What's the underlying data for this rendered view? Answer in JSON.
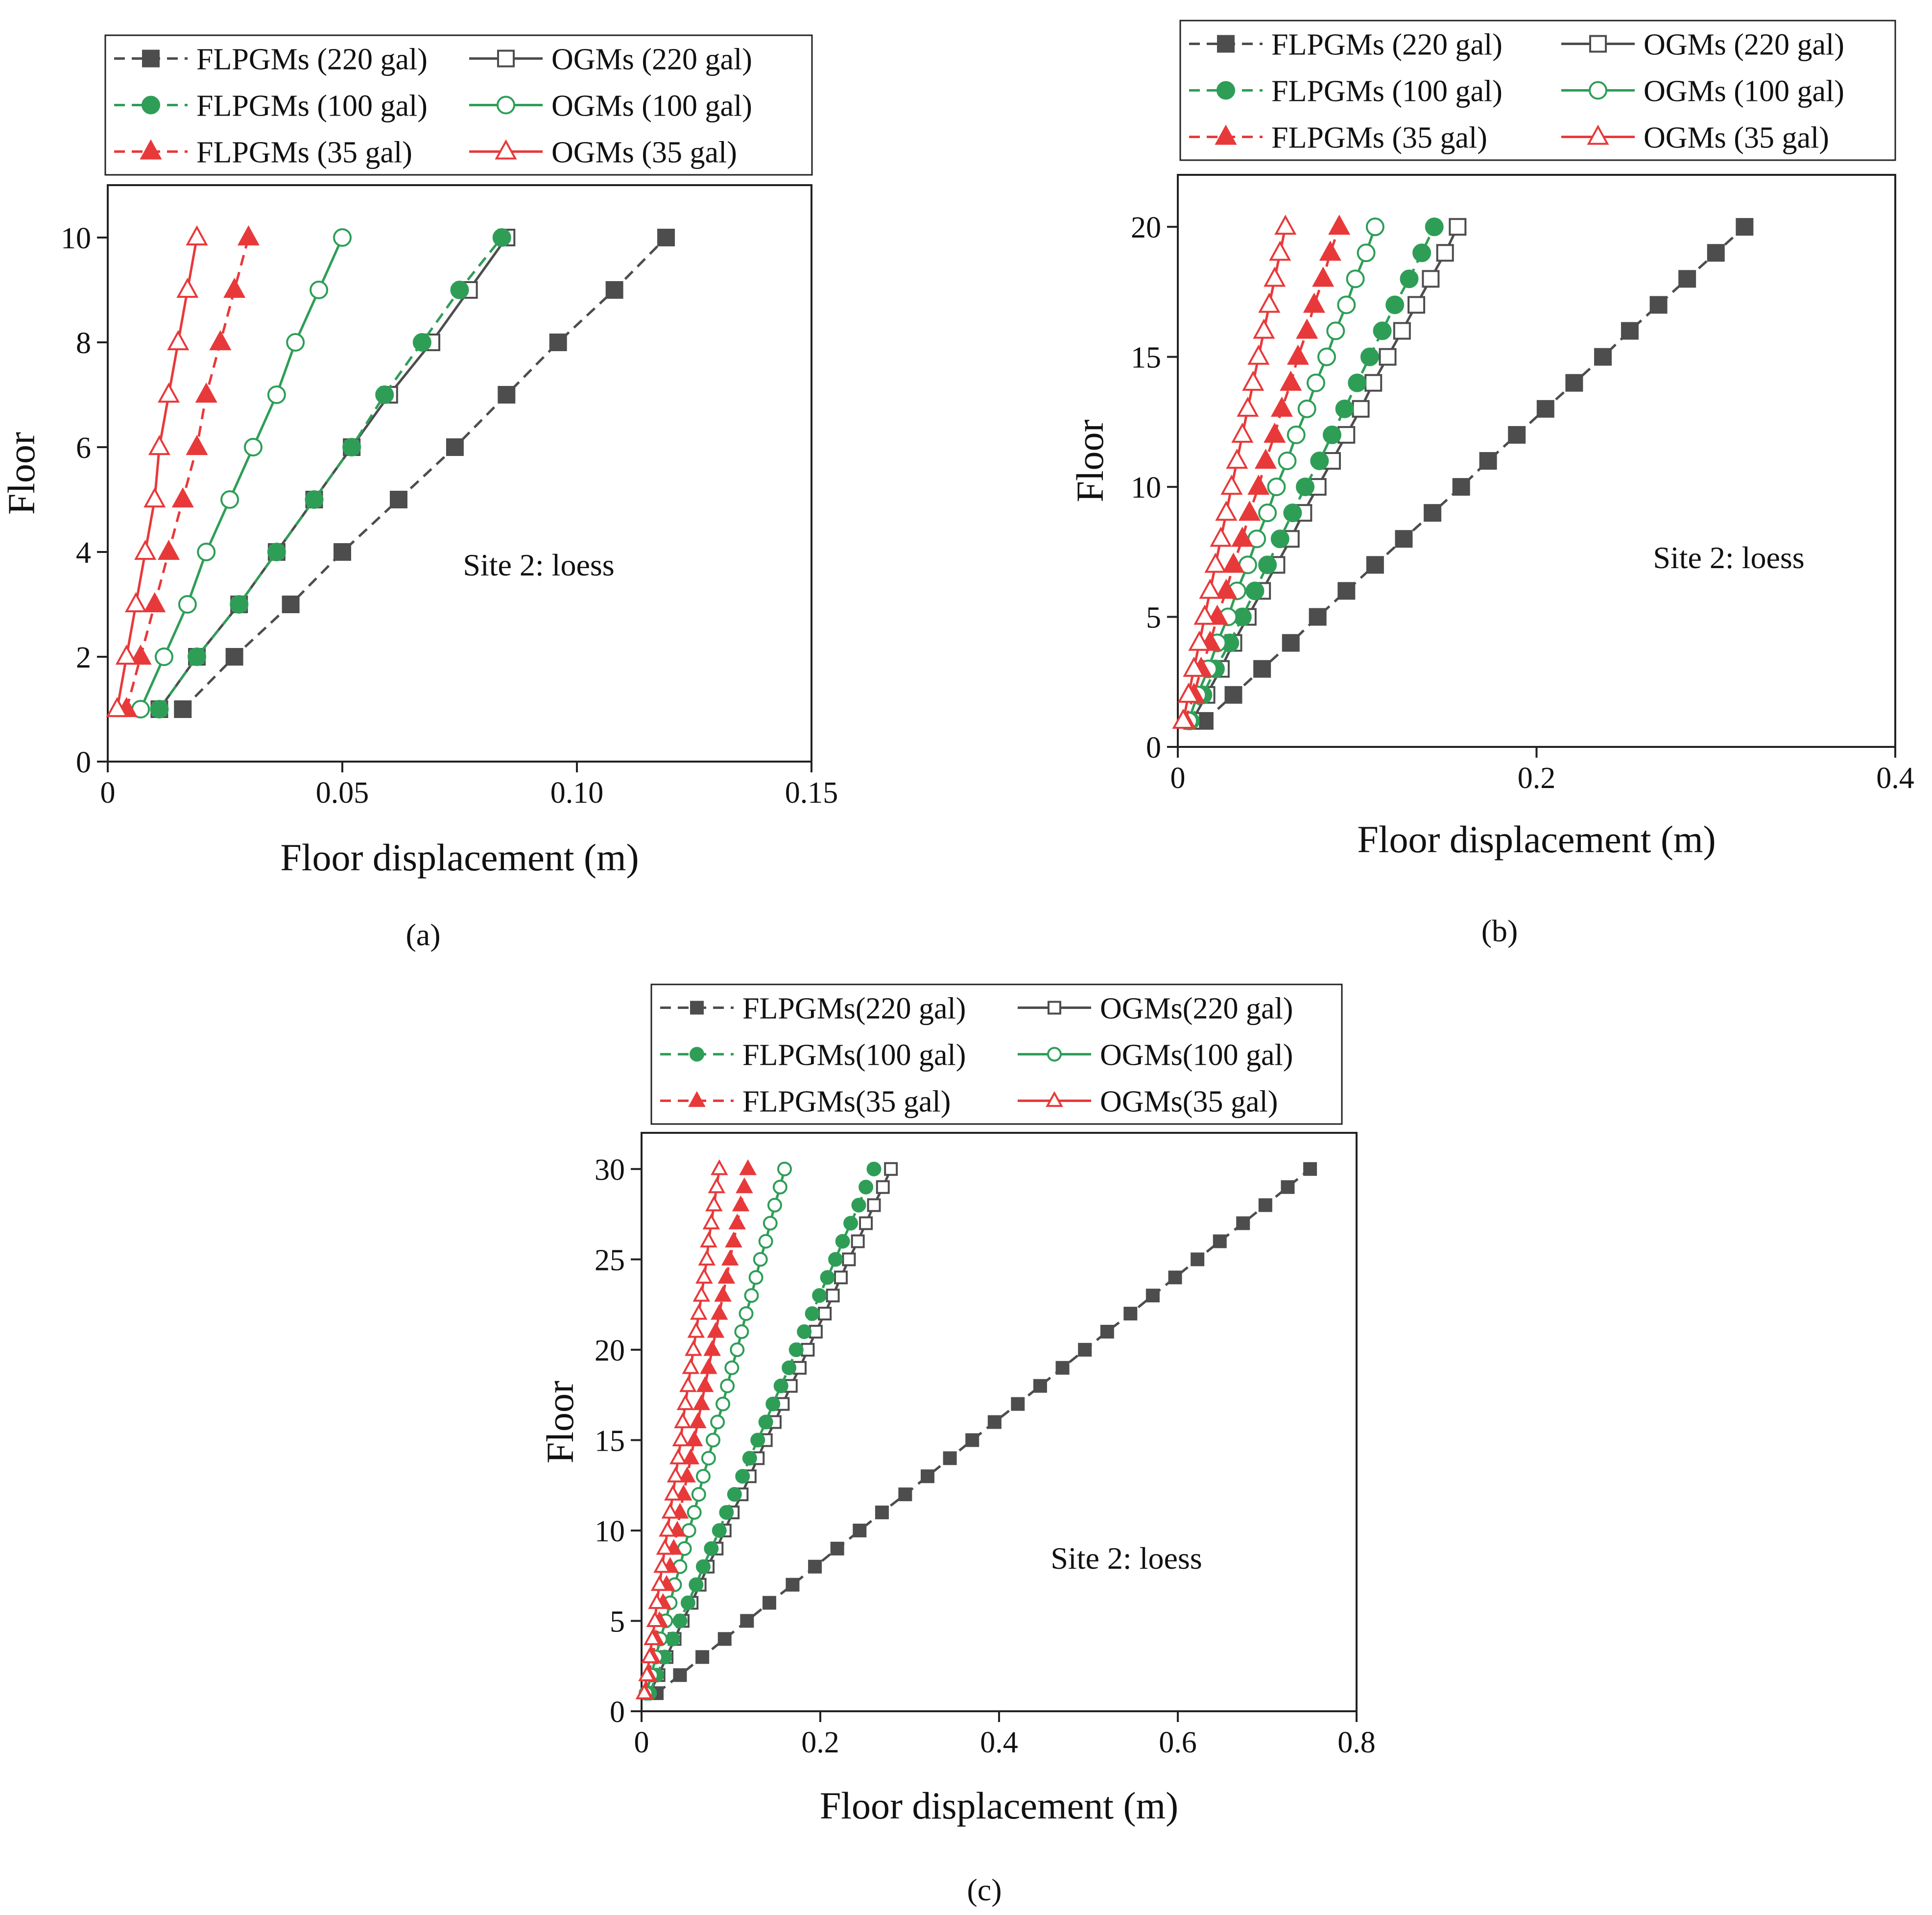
{
  "chart_data": [
    {
      "panel": "(a)",
      "type": "line",
      "xlabel": "Floor displacement (m)",
      "ylabel": "Floor",
      "xlim": [
        0,
        0.15
      ],
      "ylim": [
        0,
        11
      ],
      "xticks": [
        0,
        0.05,
        0.1,
        0.15
      ],
      "xtick_labels": [
        "0",
        "0.05",
        "0.10",
        "0.15"
      ],
      "yticks": [
        0,
        2,
        4,
        6,
        8,
        10
      ],
      "ytick_labels": [
        "0",
        "2",
        "4",
        "6",
        "8",
        "10"
      ],
      "annotation": "Site 2: loess",
      "legend_location": "top",
      "legend": [
        "FLPGMs (220 gal)",
        "OGMs (220 gal)",
        "FLPGMs (100 gal)",
        "OGMs (100 gal)",
        "FLPGMs (35 gal)",
        "OGMs (35 gal)"
      ],
      "floors": [
        1,
        2,
        3,
        4,
        5,
        6,
        7,
        8,
        9,
        10
      ],
      "series": [
        {
          "name": "FLPGMs (220 gal)",
          "color": "#4d4d4d",
          "line": "dashed",
          "marker": "square",
          "filled": true,
          "values": [
            0.016,
            0.027,
            0.039,
            0.05,
            0.062,
            0.074,
            0.085,
            0.096,
            0.108,
            0.119
          ]
        },
        {
          "name": "OGMs (220 gal)",
          "color": "#4d4d4d",
          "line": "solid",
          "marker": "square",
          "filled": false,
          "values": [
            0.011,
            0.019,
            0.028,
            0.036,
            0.044,
            0.052,
            0.06,
            0.069,
            0.077,
            0.085
          ]
        },
        {
          "name": "FLPGMs (100 gal)",
          "color": "#2e9e57",
          "line": "dashed",
          "marker": "circle",
          "filled": true,
          "values": [
            0.011,
            0.019,
            0.028,
            0.036,
            0.044,
            0.052,
            0.059,
            0.067,
            0.075,
            0.084
          ]
        },
        {
          "name": "OGMs (100 gal)",
          "color": "#2e9e57",
          "line": "solid",
          "marker": "circle",
          "filled": false,
          "values": [
            0.007,
            0.012,
            0.017,
            0.021,
            0.026,
            0.031,
            0.036,
            0.04,
            0.045,
            0.05
          ]
        },
        {
          "name": "FLPGMs (35 gal)",
          "color": "#e8393a",
          "line": "dashed",
          "marker": "triangle",
          "filled": true,
          "values": [
            0.004,
            0.007,
            0.01,
            0.013,
            0.016,
            0.019,
            0.021,
            0.024,
            0.027,
            0.03
          ]
        },
        {
          "name": "OGMs (35 gal)",
          "color": "#e8393a",
          "line": "solid",
          "marker": "triangle",
          "filled": false,
          "values": [
            0.002,
            0.004,
            0.006,
            0.008,
            0.01,
            0.011,
            0.013,
            0.015,
            0.017,
            0.019
          ]
        }
      ]
    },
    {
      "panel": "(b)",
      "type": "line",
      "xlabel": "Floor displacement (m)",
      "ylabel": "Floor",
      "xlim": [
        0,
        0.4
      ],
      "ylim": [
        0,
        22
      ],
      "xticks": [
        0,
        0.2,
        0.4
      ],
      "xtick_labels": [
        "0",
        "0.2",
        "0.4"
      ],
      "yticks": [
        0,
        5,
        10,
        15,
        20
      ],
      "ytick_labels": [
        "0",
        "5",
        "10",
        "15",
        "20"
      ],
      "annotation": "Site 2: loess",
      "legend_location": "top",
      "legend": [
        "FLPGMs (220 gal)",
        "OGMs (220 gal)",
        "FLPGMs (100 gal)",
        "OGMs (100 gal)",
        "FLPGMs (35 gal)",
        "OGMs (35 gal)"
      ],
      "floors": [
        1,
        2,
        3,
        4,
        5,
        6,
        7,
        8,
        9,
        10,
        11,
        12,
        13,
        14,
        15,
        16,
        17,
        18,
        19,
        20
      ],
      "series": [
        {
          "name": "FLPGMs (220 gal)",
          "color": "#4d4d4d",
          "line": "dashed",
          "marker": "square",
          "filled": true,
          "values": [
            0.015,
            0.031,
            0.047,
            0.063,
            0.078,
            0.094,
            0.11,
            0.126,
            0.142,
            0.158,
            0.173,
            0.189,
            0.205,
            0.221,
            0.237,
            0.252,
            0.268,
            0.284,
            0.3,
            0.316
          ]
        },
        {
          "name": "OGMs (220 gal)",
          "color": "#4d4d4d",
          "line": "solid",
          "marker": "square",
          "filled": false,
          "values": [
            0.008,
            0.016,
            0.024,
            0.031,
            0.039,
            0.047,
            0.055,
            0.063,
            0.07,
            0.078,
            0.086,
            0.094,
            0.102,
            0.109,
            0.117,
            0.125,
            0.133,
            0.141,
            0.149,
            0.156
          ]
        },
        {
          "name": "FLPGMs (100 gal)",
          "color": "#2e9e57",
          "line": "dashed",
          "marker": "circle",
          "filled": true,
          "values": [
            0.007,
            0.014,
            0.021,
            0.029,
            0.036,
            0.043,
            0.05,
            0.057,
            0.064,
            0.071,
            0.079,
            0.086,
            0.093,
            0.1,
            0.107,
            0.114,
            0.121,
            0.129,
            0.136,
            0.143
          ]
        },
        {
          "name": "OGMs (100 gal)",
          "color": "#2e9e57",
          "line": "solid",
          "marker": "circle",
          "filled": false,
          "values": [
            0.006,
            0.011,
            0.017,
            0.022,
            0.028,
            0.033,
            0.039,
            0.044,
            0.05,
            0.055,
            0.061,
            0.066,
            0.072,
            0.077,
            0.083,
            0.088,
            0.094,
            0.099,
            0.105,
            0.11
          ]
        },
        {
          "name": "FLPGMs (35 gal)",
          "color": "#e8393a",
          "line": "dashed",
          "marker": "triangle",
          "filled": true,
          "values": [
            0.004,
            0.009,
            0.013,
            0.018,
            0.022,
            0.027,
            0.031,
            0.036,
            0.04,
            0.045,
            0.049,
            0.054,
            0.058,
            0.063,
            0.067,
            0.072,
            0.076,
            0.081,
            0.085,
            0.09
          ]
        },
        {
          "name": "OGMs (35 gal)",
          "color": "#e8393a",
          "line": "solid",
          "marker": "triangle",
          "filled": false,
          "values": [
            0.003,
            0.006,
            0.009,
            0.012,
            0.015,
            0.018,
            0.021,
            0.024,
            0.027,
            0.03,
            0.033,
            0.036,
            0.039,
            0.042,
            0.045,
            0.048,
            0.051,
            0.054,
            0.057,
            0.06
          ]
        }
      ]
    },
    {
      "panel": "(c)",
      "type": "line",
      "xlabel": "Floor displacement (m)",
      "ylabel": "Floor",
      "xlim": [
        0,
        0.8
      ],
      "ylim": [
        0,
        32
      ],
      "xticks": [
        0,
        0.2,
        0.4,
        0.6,
        0.8
      ],
      "xtick_labels": [
        "0",
        "0.2",
        "0.4",
        "0.6",
        "0.8"
      ],
      "yticks": [
        0,
        5,
        10,
        15,
        20,
        25,
        30
      ],
      "ytick_labels": [
        "0",
        "5",
        "10",
        "15",
        "20",
        "25",
        "30"
      ],
      "annotation": "Site 2: loess",
      "legend_location": "top",
      "legend": [
        "FLPGMs(220 gal)",
        "OGMs(220 gal)",
        "FLPGMs(100 gal)",
        "OGMs(100 gal)",
        "FLPGMs(35 gal)",
        "OGMs(35 gal)"
      ],
      "floors": [
        1,
        2,
        3,
        4,
        5,
        6,
        7,
        8,
        9,
        10,
        11,
        12,
        13,
        14,
        15,
        16,
        17,
        18,
        19,
        20,
        21,
        22,
        23,
        24,
        25,
        26,
        27,
        28,
        29,
        30
      ],
      "series": [
        {
          "name": "FLPGMs(220 gal)",
          "color": "#4d4d4d",
          "line": "dashed",
          "marker": "square",
          "filled": true,
          "values": [
            0.017,
            0.043,
            0.068,
            0.093,
            0.118,
            0.143,
            0.169,
            0.194,
            0.219,
            0.244,
            0.269,
            0.295,
            0.32,
            0.345,
            0.37,
            0.395,
            0.421,
            0.446,
            0.471,
            0.496,
            0.521,
            0.547,
            0.572,
            0.597,
            0.622,
            0.647,
            0.673,
            0.698,
            0.723,
            0.748
          ]
        },
        {
          "name": "OGMs(220 gal)",
          "color": "#4d4d4d",
          "line": "solid",
          "marker": "square",
          "filled": false,
          "values": [
            0.009,
            0.019,
            0.028,
            0.037,
            0.046,
            0.056,
            0.065,
            0.074,
            0.084,
            0.093,
            0.102,
            0.112,
            0.121,
            0.13,
            0.139,
            0.149,
            0.158,
            0.167,
            0.177,
            0.186,
            0.195,
            0.205,
            0.214,
            0.223,
            0.232,
            0.242,
            0.251,
            0.26,
            0.27,
            0.279
          ]
        },
        {
          "name": "FLPGMs(100 gal)",
          "color": "#2e9e57",
          "line": "dashed",
          "marker": "circle",
          "filled": true,
          "values": [
            0.009,
            0.017,
            0.026,
            0.035,
            0.043,
            0.052,
            0.061,
            0.069,
            0.078,
            0.087,
            0.095,
            0.104,
            0.113,
            0.121,
            0.13,
            0.139,
            0.147,
            0.156,
            0.165,
            0.173,
            0.182,
            0.191,
            0.199,
            0.208,
            0.217,
            0.225,
            0.234,
            0.243,
            0.251,
            0.26
          ]
        },
        {
          "name": "OGMs(100 gal)",
          "color": "#2e9e57",
          "line": "solid",
          "marker": "circle",
          "filled": false,
          "values": [
            0.005,
            0.011,
            0.016,
            0.021,
            0.027,
            0.032,
            0.037,
            0.043,
            0.048,
            0.053,
            0.059,
            0.064,
            0.069,
            0.075,
            0.08,
            0.085,
            0.091,
            0.096,
            0.101,
            0.107,
            0.112,
            0.117,
            0.123,
            0.128,
            0.133,
            0.139,
            0.144,
            0.149,
            0.155,
            0.16
          ]
        },
        {
          "name": "FLPGMs(35 gal)",
          "color": "#e8393a",
          "line": "dashed",
          "marker": "triangle",
          "filled": true,
          "values": [
            0.004,
            0.008,
            0.012,
            0.016,
            0.02,
            0.024,
            0.028,
            0.032,
            0.036,
            0.04,
            0.043,
            0.047,
            0.051,
            0.055,
            0.059,
            0.063,
            0.067,
            0.071,
            0.075,
            0.079,
            0.083,
            0.087,
            0.091,
            0.095,
            0.099,
            0.103,
            0.107,
            0.111,
            0.115,
            0.119
          ]
        },
        {
          "name": "OGMs(35 gal)",
          "color": "#e8393a",
          "line": "solid",
          "marker": "triangle",
          "filled": false,
          "values": [
            0.003,
            0.006,
            0.009,
            0.012,
            0.015,
            0.017,
            0.02,
            0.023,
            0.026,
            0.029,
            0.032,
            0.035,
            0.038,
            0.041,
            0.044,
            0.046,
            0.049,
            0.052,
            0.055,
            0.058,
            0.061,
            0.064,
            0.067,
            0.07,
            0.073,
            0.075,
            0.078,
            0.081,
            0.084,
            0.087
          ]
        }
      ]
    }
  ]
}
